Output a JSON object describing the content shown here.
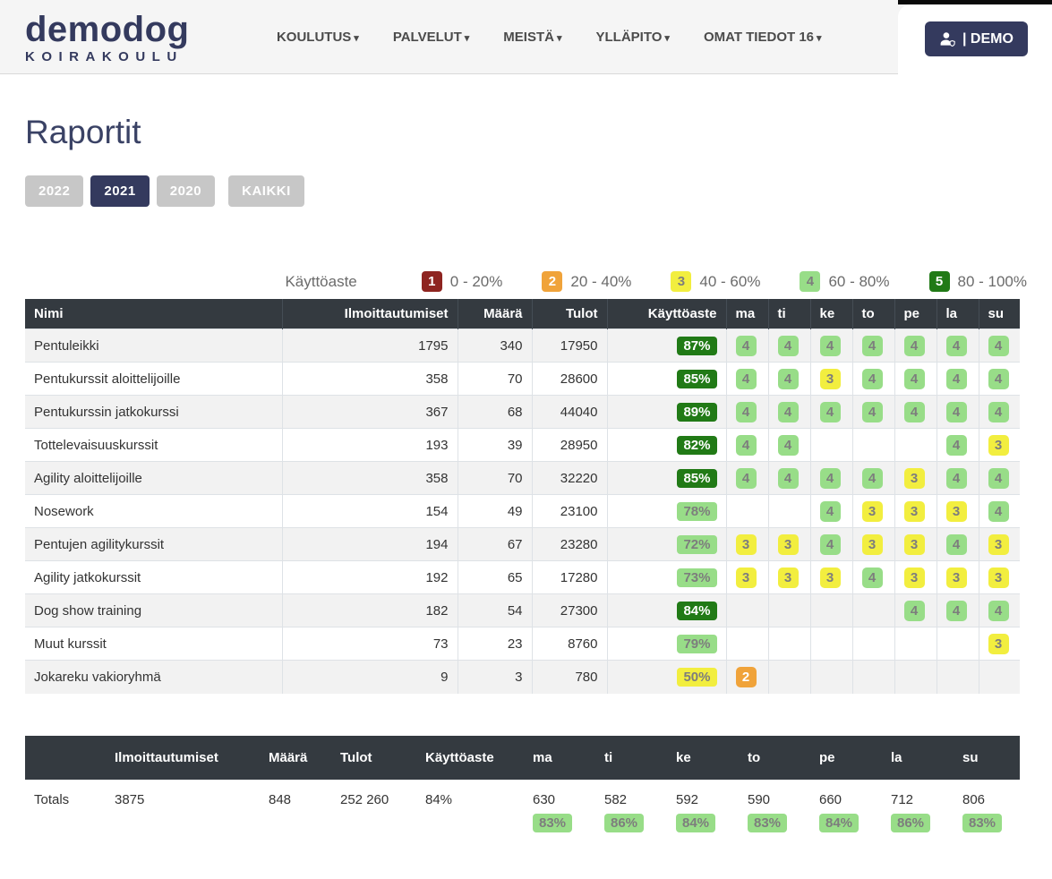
{
  "colors": {
    "navy": "#343a5e",
    "table_header": "#343a40",
    "score1": "#8e2420",
    "score2": "#f0a33a",
    "score3": "#f2ee3f",
    "score4": "#98dd88",
    "score5": "#217a16"
  },
  "header": {
    "logo_title": "demodog",
    "logo_subtitle": "KOIRAKOULU",
    "nav": [
      {
        "label": "KOULUTUS"
      },
      {
        "label": "PALVELUT"
      },
      {
        "label": "MEISTÄ"
      },
      {
        "label": "YLLÄPITO"
      },
      {
        "label": "OMAT TIEDOT 16"
      }
    ],
    "account_button": "| DEMO"
  },
  "page": {
    "title": "Raportit"
  },
  "year_filters": [
    {
      "label": "2022",
      "active": false
    },
    {
      "label": "2021",
      "active": true
    },
    {
      "label": "2020",
      "active": false
    },
    {
      "label": "KAIKKI",
      "active": false
    }
  ],
  "legend": {
    "label": "Käyttöaste",
    "items": [
      {
        "score": "1",
        "range": "0 - 20%"
      },
      {
        "score": "2",
        "range": "20 - 40%"
      },
      {
        "score": "3",
        "range": "40 - 60%"
      },
      {
        "score": "4",
        "range": "60 - 80%"
      },
      {
        "score": "5",
        "range": "80 - 100%"
      }
    ]
  },
  "main_table": {
    "columns": [
      "Nimi",
      "Ilmoittautumiset",
      "Määrä",
      "Tulot",
      "Käyttöaste",
      "ma",
      "ti",
      "ke",
      "to",
      "pe",
      "la",
      "su"
    ],
    "rows": [
      {
        "name": "Pentuleikki",
        "enrollments": "1795",
        "count": "340",
        "income": "17950",
        "utilization": "87%",
        "level": 5,
        "days": [
          4,
          4,
          4,
          4,
          4,
          4,
          4
        ]
      },
      {
        "name": "Pentukurssit aloittelijoille",
        "enrollments": "358",
        "count": "70",
        "income": "28600",
        "utilization": "85%",
        "level": 5,
        "days": [
          4,
          4,
          3,
          4,
          4,
          4,
          4
        ]
      },
      {
        "name": "Pentukurssin jatkokurssi",
        "enrollments": "367",
        "count": "68",
        "income": "44040",
        "utilization": "89%",
        "level": 5,
        "days": [
          4,
          4,
          4,
          4,
          4,
          4,
          4
        ]
      },
      {
        "name": "Tottelevaisuuskurssit",
        "enrollments": "193",
        "count": "39",
        "income": "28950",
        "utilization": "82%",
        "level": 5,
        "days": [
          4,
          4,
          null,
          null,
          null,
          4,
          3
        ]
      },
      {
        "name": "Agility aloittelijoille",
        "enrollments": "358",
        "count": "70",
        "income": "32220",
        "utilization": "85%",
        "level": 5,
        "days": [
          4,
          4,
          4,
          4,
          3,
          4,
          4
        ]
      },
      {
        "name": "Nosework",
        "enrollments": "154",
        "count": "49",
        "income": "23100",
        "utilization": "78%",
        "level": 4,
        "days": [
          null,
          null,
          4,
          3,
          3,
          3,
          4
        ]
      },
      {
        "name": "Pentujen agilitykurssit",
        "enrollments": "194",
        "count": "67",
        "income": "23280",
        "utilization": "72%",
        "level": 4,
        "days": [
          3,
          3,
          4,
          3,
          3,
          4,
          3
        ]
      },
      {
        "name": "Agility jatkokurssit",
        "enrollments": "192",
        "count": "65",
        "income": "17280",
        "utilization": "73%",
        "level": 4,
        "days": [
          3,
          3,
          3,
          4,
          3,
          3,
          3
        ]
      },
      {
        "name": "Dog show training",
        "enrollments": "182",
        "count": "54",
        "income": "27300",
        "utilization": "84%",
        "level": 5,
        "days": [
          null,
          null,
          null,
          null,
          4,
          4,
          4
        ]
      },
      {
        "name": "Muut kurssit",
        "enrollments": "73",
        "count": "23",
        "income": "8760",
        "utilization": "79%",
        "level": 4,
        "days": [
          null,
          null,
          null,
          null,
          null,
          null,
          3
        ]
      },
      {
        "name": "Jokareku vakioryhmä",
        "enrollments": "9",
        "count": "3",
        "income": "780",
        "utilization": "50%",
        "level": 3,
        "days": [
          2,
          null,
          null,
          null,
          null,
          null,
          null
        ]
      }
    ]
  },
  "totals_table": {
    "columns": [
      "",
      "Ilmoittautumiset",
      "Määrä",
      "Tulot",
      "Käyttöaste",
      "ma",
      "ti",
      "ke",
      "to",
      "pe",
      "la",
      "su"
    ],
    "row_label": "Totals",
    "enrollments": "3875",
    "count": "848",
    "income": "252 260",
    "utilization": "84%",
    "days": [
      {
        "value": "630",
        "pct": "83%"
      },
      {
        "value": "582",
        "pct": "86%"
      },
      {
        "value": "592",
        "pct": "84%"
      },
      {
        "value": "590",
        "pct": "83%"
      },
      {
        "value": "660",
        "pct": "84%"
      },
      {
        "value": "712",
        "pct": "86%"
      },
      {
        "value": "806",
        "pct": "83%"
      }
    ]
  }
}
